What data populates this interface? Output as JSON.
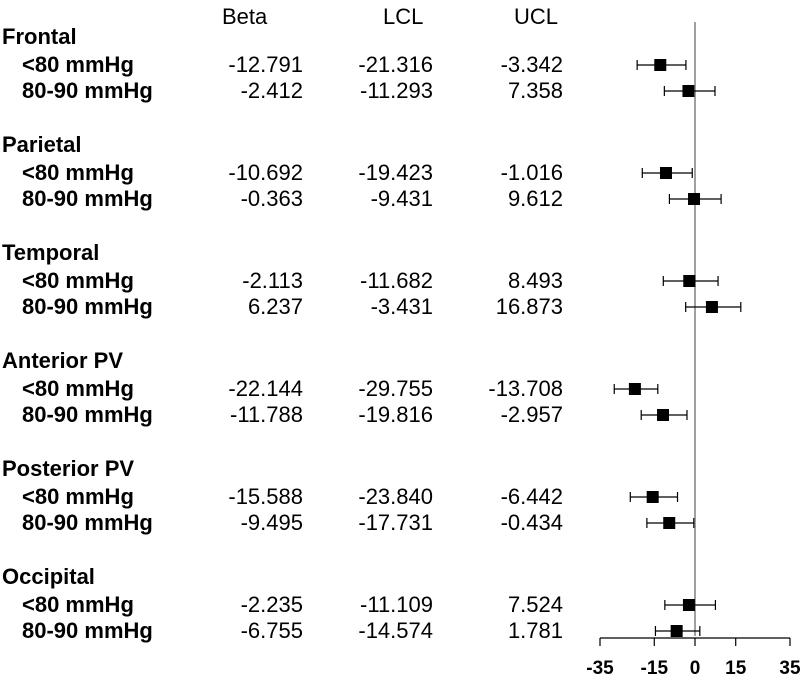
{
  "chart_data": {
    "type": "forest",
    "columns": [
      "Beta",
      "LCL",
      "UCL"
    ],
    "groups": [
      {
        "name": "Frontal",
        "rows": [
          {
            "label": "<80 mmHg",
            "beta": -12.791,
            "lcl": -21.316,
            "ucl": -3.342,
            "beta_text": "-12.791",
            "lcl_text": "-21.316",
            "ucl_text": "-3.342"
          },
          {
            "label": "80-90 mmHg",
            "beta": -2.412,
            "lcl": -11.293,
            "ucl": 7.358,
            "beta_text": "-2.412",
            "lcl_text": "-11.293",
            "ucl_text": "7.358"
          }
        ]
      },
      {
        "name": "Parietal",
        "rows": [
          {
            "label": "<80 mmHg",
            "beta": -10.692,
            "lcl": -19.423,
            "ucl": -1.016,
            "beta_text": "-10.692",
            "lcl_text": "-19.423",
            "ucl_text": "-1.016"
          },
          {
            "label": "80-90 mmHg",
            "beta": -0.363,
            "lcl": -9.431,
            "ucl": 9.612,
            "beta_text": "-0.363",
            "lcl_text": "-9.431",
            "ucl_text": "9.612"
          }
        ]
      },
      {
        "name": "Temporal",
        "rows": [
          {
            "label": "<80 mmHg",
            "beta": -2.113,
            "lcl": -11.682,
            "ucl": 8.493,
            "beta_text": "-2.113",
            "lcl_text": "-11.682",
            "ucl_text": "8.493"
          },
          {
            "label": "80-90 mmHg",
            "beta": 6.237,
            "lcl": -3.431,
            "ucl": 16.873,
            "beta_text": "6.237",
            "lcl_text": "-3.431",
            "ucl_text": "16.873"
          }
        ]
      },
      {
        "name": "Anterior PV",
        "rows": [
          {
            "label": "<80 mmHg",
            "beta": -22.144,
            "lcl": -29.755,
            "ucl": -13.708,
            "beta_text": "-22.144",
            "lcl_text": "-29.755",
            "ucl_text": "-13.708"
          },
          {
            "label": "80-90 mmHg",
            "beta": -11.788,
            "lcl": -19.816,
            "ucl": -2.957,
            "beta_text": "-11.788",
            "lcl_text": "-19.816",
            "ucl_text": "-2.957"
          }
        ]
      },
      {
        "name": "Posterior PV",
        "rows": [
          {
            "label": "<80 mmHg",
            "beta": -15.588,
            "lcl": -23.84,
            "ucl": -6.442,
            "beta_text": "-15.588",
            "lcl_text": "-23.840",
            "ucl_text": "-6.442"
          },
          {
            "label": "80-90 mmHg",
            "beta": -9.495,
            "lcl": -17.731,
            "ucl": -0.434,
            "beta_text": "-9.495",
            "lcl_text": "-17.731",
            "ucl_text": "-0.434"
          }
        ]
      },
      {
        "name": "Occipital",
        "rows": [
          {
            "label": "<80 mmHg",
            "beta": -2.235,
            "lcl": -11.109,
            "ucl": 7.524,
            "beta_text": "-2.235",
            "lcl_text": "-11.109",
            "ucl_text": "7.524"
          },
          {
            "label": "80-90 mmHg",
            "beta": -6.755,
            "lcl": -14.574,
            "ucl": 1.781,
            "beta_text": "-6.755",
            "lcl_text": "-14.574",
            "ucl_text": "1.781"
          }
        ]
      }
    ],
    "x_ticks": [
      -35,
      -15,
      0,
      15,
      35
    ],
    "x_tick_labels": [
      "-35",
      "-15",
      "0",
      "15",
      "35"
    ],
    "xlim": [
      -35,
      35
    ],
    "reference_line": 0,
    "reference_line_color": "#a0a0a0",
    "marker_color": "#000000"
  }
}
